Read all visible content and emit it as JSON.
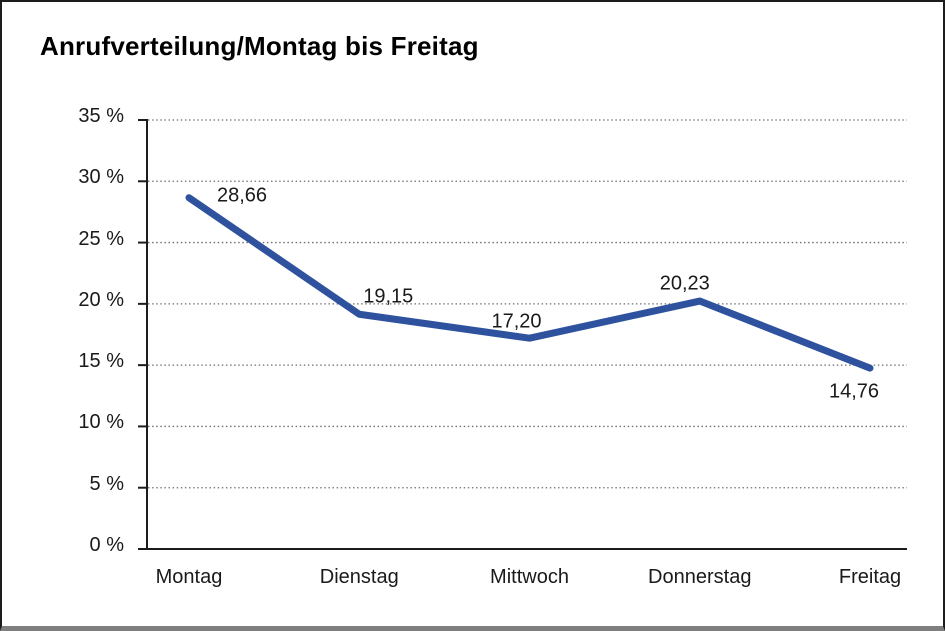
{
  "chart_data": {
    "type": "line",
    "title": "Anrufverteilung/Montag bis Freitag",
    "categories": [
      "Montag",
      "Dienstag",
      "Mittwoch",
      "Donnerstag",
      "Freitag"
    ],
    "series": [
      {
        "name": "Anrufverteilung",
        "values": [
          28.66,
          19.15,
          17.2,
          20.23,
          14.76
        ],
        "point_labels": [
          "28,66",
          "19,15",
          "17,20",
          "20,23",
          "14,76"
        ]
      }
    ],
    "xlabel": "",
    "ylabel": "",
    "ylim": [
      0,
      35
    ],
    "y_tick_step": 5,
    "y_tick_labels_top_down": [
      "35 %",
      "30 %",
      "25 %",
      "20 %",
      "15 %",
      "10 %",
      "5 %",
      "0 %"
    ],
    "grid": "horizontal-dotted",
    "legend": "none",
    "colors": {
      "line": "#2F529F",
      "axis": "#1c1c1c",
      "gridline": "#6e6e6e",
      "text": "#1a1a1a",
      "background": "#ffffff",
      "frame_bottom_bar": "#7f7f7f"
    }
  }
}
